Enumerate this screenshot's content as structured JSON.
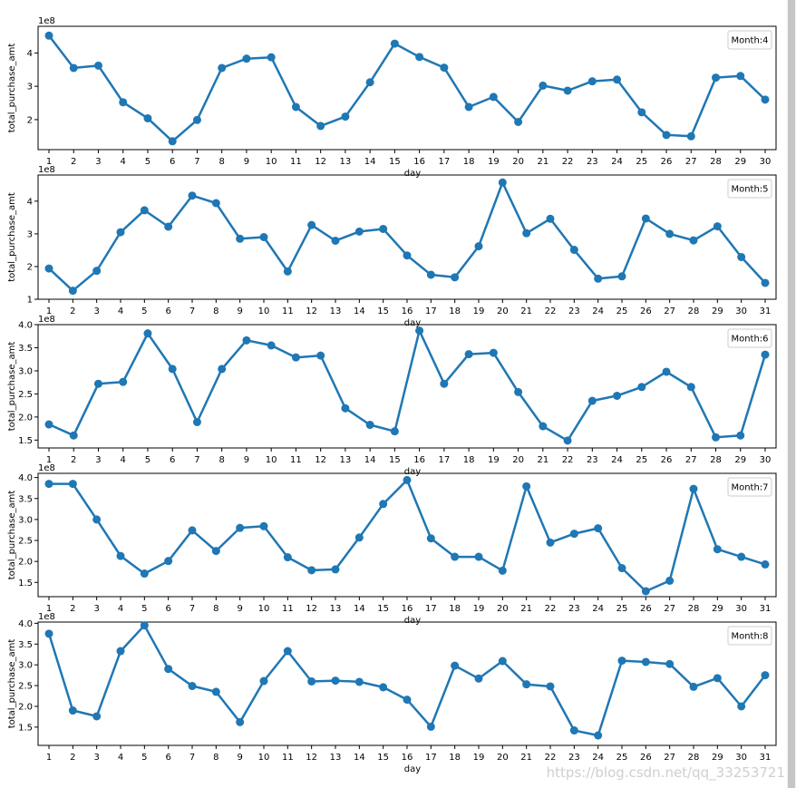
{
  "watermark": "https://blog.csdn.net/qq_33253721",
  "colors": {
    "line": "#1f77b4",
    "axis": "#000000",
    "legend_border": "#cccccc"
  },
  "chart_data": [
    {
      "type": "line",
      "legend": "Month:4",
      "legend_position": "top-right",
      "xlabel": "day",
      "ylabel": "total_purchase_amt",
      "offset_label": "1e8",
      "grid": false,
      "yticks": [
        "2",
        "3",
        "4"
      ],
      "ytick_values": [
        2,
        3,
        4
      ],
      "ylim": [
        1.1,
        4.8
      ],
      "x": [
        1,
        2,
        3,
        4,
        5,
        6,
        7,
        8,
        9,
        10,
        11,
        12,
        13,
        14,
        15,
        16,
        17,
        18,
        19,
        20,
        21,
        22,
        23,
        24,
        25,
        26,
        27,
        28,
        29,
        30
      ],
      "values": [
        4.52,
        3.55,
        3.62,
        2.52,
        2.04,
        1.35,
        1.99,
        3.55,
        3.83,
        3.87,
        2.38,
        1.81,
        2.09,
        3.12,
        4.28,
        3.88,
        3.56,
        2.38,
        2.68,
        1.93,
        3.02,
        2.87,
        3.15,
        3.2,
        2.22,
        1.54,
        1.5,
        3.26,
        3.31,
        2.6
      ]
    },
    {
      "type": "line",
      "legend": "Month:5",
      "legend_position": "top-right",
      "xlabel": "day",
      "ylabel": "total_purchase_amt",
      "offset_label": "1e8",
      "grid": false,
      "yticks": [
        "1",
        "2",
        "3",
        "4"
      ],
      "ytick_values": [
        1,
        2,
        3,
        4
      ],
      "ylim": [
        1.0,
        4.8
      ],
      "x": [
        1,
        2,
        3,
        4,
        5,
        6,
        7,
        8,
        9,
        10,
        11,
        12,
        13,
        14,
        15,
        16,
        17,
        18,
        19,
        20,
        21,
        22,
        23,
        24,
        25,
        26,
        27,
        28,
        29,
        30,
        31
      ],
      "values": [
        1.94,
        1.26,
        1.87,
        3.05,
        3.72,
        3.22,
        4.17,
        3.94,
        2.85,
        2.9,
        1.85,
        3.27,
        2.79,
        3.07,
        3.15,
        2.34,
        1.75,
        1.67,
        2.62,
        4.57,
        3.02,
        3.46,
        2.51,
        1.63,
        1.7,
        3.47,
        3.0,
        2.8,
        3.23,
        2.29,
        1.5
      ]
    },
    {
      "type": "line",
      "legend": "Month:6",
      "legend_position": "top-right",
      "xlabel": "day",
      "ylabel": "total_purchase_amt",
      "offset_label": "1e8",
      "grid": false,
      "yticks": [
        "1.5",
        "2.0",
        "2.5",
        "3.0",
        "3.5",
        "4.0"
      ],
      "ytick_values": [
        1.5,
        2.0,
        2.5,
        3.0,
        3.5,
        4.0
      ],
      "ylim": [
        1.33,
        4.0
      ],
      "x": [
        1,
        2,
        3,
        4,
        5,
        6,
        7,
        8,
        9,
        10,
        11,
        12,
        13,
        14,
        15,
        16,
        17,
        18,
        19,
        20,
        21,
        22,
        23,
        24,
        25,
        26,
        27,
        28,
        29,
        30
      ],
      "values": [
        1.84,
        1.6,
        2.72,
        2.76,
        3.81,
        3.04,
        1.89,
        3.04,
        3.66,
        3.55,
        3.29,
        3.33,
        2.19,
        1.83,
        1.69,
        3.87,
        2.72,
        3.36,
        3.39,
        2.54,
        1.8,
        1.49,
        2.35,
        2.46,
        2.65,
        2.98,
        2.65,
        1.56,
        1.6,
        3.35
      ]
    },
    {
      "type": "line",
      "legend": "Month:7",
      "legend_position": "top-right",
      "xlabel": "day",
      "ylabel": "total_purchase_amt",
      "offset_label": "1e8",
      "grid": false,
      "yticks": [
        "1.5",
        "2.0",
        "2.5",
        "3.0",
        "3.5",
        "4.0"
      ],
      "ytick_values": [
        1.5,
        2.0,
        2.5,
        3.0,
        3.5,
        4.0
      ],
      "ylim": [
        1.16,
        4.1
      ],
      "x": [
        1,
        2,
        3,
        4,
        5,
        6,
        7,
        8,
        9,
        10,
        11,
        12,
        13,
        14,
        15,
        16,
        17,
        18,
        19,
        20,
        21,
        22,
        23,
        24,
        25,
        26,
        27,
        28,
        29,
        30,
        31
      ],
      "values": [
        3.85,
        3.85,
        3.0,
        2.13,
        1.71,
        2.01,
        2.74,
        2.25,
        2.8,
        2.84,
        2.1,
        1.79,
        1.81,
        2.57,
        3.37,
        3.94,
        2.55,
        2.11,
        2.11,
        1.78,
        3.79,
        2.45,
        2.66,
        2.79,
        1.84,
        1.29,
        1.54,
        3.73,
        2.29,
        2.11,
        1.93
      ]
    },
    {
      "type": "line",
      "legend": "Month:8",
      "legend_position": "top-right",
      "xlabel": "day",
      "ylabel": "total_purchase_amt",
      "offset_label": "1e8",
      "grid": false,
      "yticks": [
        "1.5",
        "2.0",
        "2.5",
        "3.0",
        "3.5",
        "4.0"
      ],
      "ytick_values": [
        1.5,
        2.0,
        2.5,
        3.0,
        3.5,
        4.0
      ],
      "ylim": [
        1.06,
        4.03
      ],
      "x": [
        1,
        2,
        3,
        4,
        5,
        6,
        7,
        8,
        9,
        10,
        11,
        12,
        13,
        14,
        15,
        16,
        17,
        18,
        19,
        20,
        21,
        22,
        23,
        24,
        25,
        26,
        27,
        28,
        29,
        30,
        31
      ],
      "values": [
        3.75,
        1.9,
        1.76,
        3.33,
        3.95,
        2.9,
        2.49,
        2.35,
        1.62,
        2.61,
        3.33,
        2.6,
        2.62,
        2.59,
        2.46,
        2.16,
        1.51,
        2.98,
        2.67,
        3.09,
        2.53,
        2.48,
        1.42,
        1.3,
        3.1,
        3.07,
        3.02,
        2.47,
        2.68,
        2.0,
        2.75
      ]
    }
  ]
}
